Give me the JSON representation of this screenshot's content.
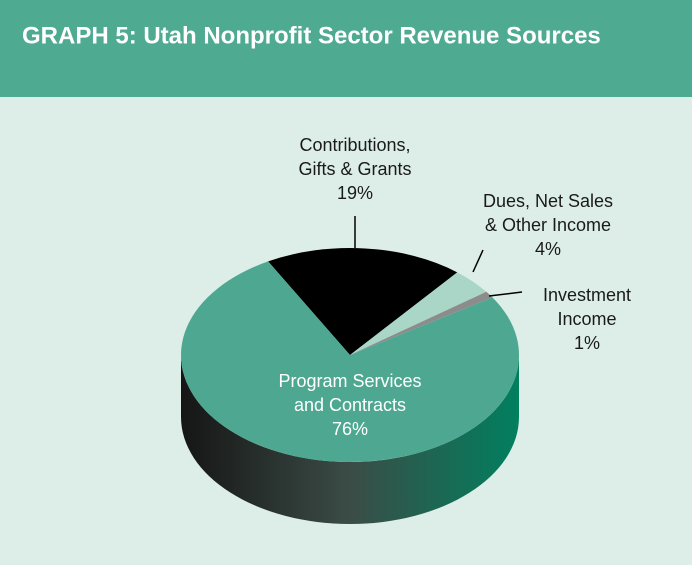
{
  "chart_data": {
    "type": "pie",
    "title": "GRAPH 5: Utah Nonprofit Sector Revenue Sources",
    "categories": [
      "Contributions,\nGifts & Grants",
      "Dues, Net Sales\n& Other Income",
      "Investment\nIncome",
      "Program Services\nand Contracts"
    ],
    "values": [
      19,
      4,
      1,
      76
    ],
    "value_labels": [
      "19%",
      "4%",
      "1%",
      "76%"
    ],
    "colors": [
      "#000000",
      "#a9d6c7",
      "#8c8c8c",
      "#4ea891"
    ]
  }
}
